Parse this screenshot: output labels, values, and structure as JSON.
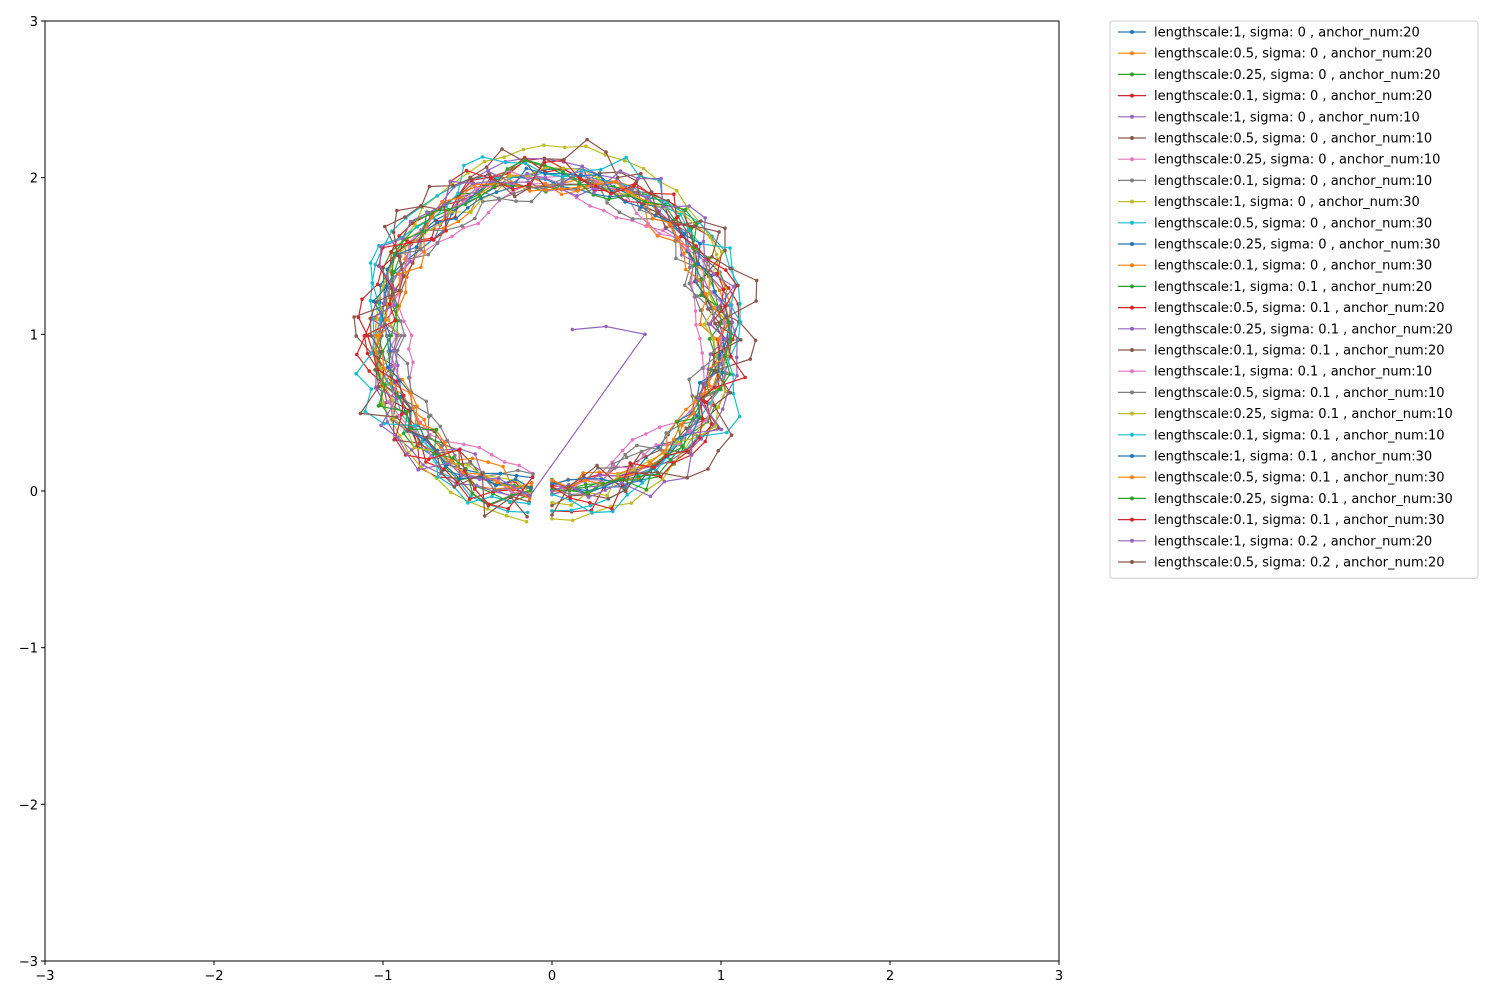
{
  "chart_data": {
    "type": "line",
    "xlim": [
      -3,
      3
    ],
    "ylim": [
      -3,
      3
    ],
    "xticks": [
      -3,
      -2,
      -1,
      0,
      1,
      2,
      3
    ],
    "yticks": [
      -3,
      -2,
      -1,
      0,
      1,
      2,
      3
    ],
    "xtick_labels": [
      "−3",
      "−2",
      "−1",
      "0",
      "1",
      "2",
      "3"
    ],
    "ytick_labels": [
      "−3",
      "−2",
      "−1",
      "0",
      "1",
      "2",
      "3"
    ],
    "grid": false,
    "legend_position": "outside-top-right",
    "center": [
      0,
      1
    ],
    "series": [
      {
        "name": "lengthscale:1, sigma: 0 , anchor_num:20",
        "color": "#1f77b4",
        "radius": 1.02,
        "wobble": 0.04,
        "freq": 5,
        "phase": 0.3,
        "points": 60,
        "noise": 0.02
      },
      {
        "name": "lengthscale:0.5, sigma: 0 , anchor_num:20",
        "color": "#ff7f0e",
        "radius": 1.0,
        "wobble": 0.05,
        "freq": 6,
        "phase": 1.1,
        "points": 60,
        "noise": 0.02
      },
      {
        "name": "lengthscale:0.25, sigma: 0 , anchor_num:20",
        "color": "#2ca02c",
        "radius": 1.03,
        "wobble": 0.06,
        "freq": 7,
        "phase": 2.0,
        "points": 60,
        "noise": 0.03
      },
      {
        "name": "lengthscale:0.1, sigma: 0 , anchor_num:20",
        "color": "#d62728",
        "radius": 1.05,
        "wobble": 0.08,
        "freq": 8,
        "phase": 0.7,
        "points": 60,
        "noise": 0.04
      },
      {
        "name": "lengthscale:1, sigma: 0 , anchor_num:10",
        "color": "#9467bd",
        "radius": 1.06,
        "wobble": 0.06,
        "freq": 3,
        "phase": 2.6,
        "points": 60,
        "noise": 0.02
      },
      {
        "name": "lengthscale:0.5, sigma: 0 , anchor_num:10",
        "color": "#8c564b",
        "radius": 1.0,
        "wobble": 0.07,
        "freq": 5,
        "phase": 3.3,
        "points": 60,
        "noise": 0.03
      },
      {
        "name": "lengthscale:0.25, sigma: 0 , anchor_num:10",
        "color": "#e377c2",
        "radius": 0.9,
        "wobble": 0.06,
        "freq": 6,
        "phase": 4.1,
        "points": 60,
        "noise": 0.02
      },
      {
        "name": "lengthscale:0.1, sigma: 0 , anchor_num:10",
        "color": "#7f7f7f",
        "radius": 0.95,
        "wobble": 0.08,
        "freq": 9,
        "phase": 1.5,
        "points": 60,
        "noise": 0.03
      },
      {
        "name": "lengthscale:1, sigma: 0 , anchor_num:30",
        "color": "#bcbd22",
        "radius": 1.12,
        "wobble": 0.08,
        "freq": 2,
        "phase": 5.0,
        "points": 60,
        "noise": 0.02
      },
      {
        "name": "lengthscale:0.5, sigma: 0 , anchor_num:30",
        "color": "#17becf",
        "radius": 1.08,
        "wobble": 0.07,
        "freq": 3,
        "phase": 0.4,
        "points": 60,
        "noise": 0.02
      },
      {
        "name": "lengthscale:0.25, sigma: 0 , anchor_num:30",
        "color": "#1f77b4",
        "radius": 0.98,
        "wobble": 0.05,
        "freq": 6,
        "phase": 2.8,
        "points": 60,
        "noise": 0.02
      },
      {
        "name": "lengthscale:0.1, sigma: 0 , anchor_num:30",
        "color": "#ff7f0e",
        "radius": 0.97,
        "wobble": 0.07,
        "freq": 9,
        "phase": 3.8,
        "points": 60,
        "noise": 0.03
      },
      {
        "name": "lengthscale:1, sigma: 0.1 , anchor_num:20",
        "color": "#2ca02c",
        "radius": 1.01,
        "wobble": 0.05,
        "freq": 4,
        "phase": 4.6,
        "points": 60,
        "noise": 0.05
      },
      {
        "name": "lengthscale:0.5, sigma: 0.1 , anchor_num:20",
        "color": "#d62728",
        "radius": 1.04,
        "wobble": 0.06,
        "freq": 5,
        "phase": 5.5,
        "points": 60,
        "noise": 0.06
      },
      {
        "name": "lengthscale:0.25, sigma: 0.1 , anchor_num:20",
        "color": "#9467bd",
        "radius": 0.99,
        "wobble": 0.06,
        "freq": 7,
        "phase": 0.9,
        "points": 60,
        "noise": 0.06
      },
      {
        "name": "lengthscale:0.1, sigma: 0.1 , anchor_num:20",
        "color": "#8c564b",
        "radius": 1.06,
        "wobble": 0.09,
        "freq": 10,
        "phase": 1.9,
        "points": 60,
        "noise": 0.08
      },
      {
        "name": "lengthscale:1, sigma: 0.1 , anchor_num:10",
        "color": "#e377c2",
        "radius": 1.0,
        "wobble": 0.05,
        "freq": 3,
        "phase": 2.2,
        "points": 60,
        "noise": 0.05
      },
      {
        "name": "lengthscale:0.5, sigma: 0.1 , anchor_num:10",
        "color": "#7f7f7f",
        "radius": 0.96,
        "wobble": 0.06,
        "freq": 4,
        "phase": 3.0,
        "points": 60,
        "noise": 0.05
      },
      {
        "name": "lengthscale:0.25, sigma: 0.1 , anchor_num:10",
        "color": "#bcbd22",
        "radius": 1.02,
        "wobble": 0.07,
        "freq": 6,
        "phase": 4.4,
        "points": 60,
        "noise": 0.06
      },
      {
        "name": "lengthscale:0.1, sigma: 0.1 , anchor_num:10",
        "color": "#17becf",
        "radius": 1.1,
        "wobble": 0.08,
        "freq": 8,
        "phase": 5.2,
        "points": 60,
        "noise": 0.06
      },
      {
        "name": "lengthscale:1, sigma: 0.1 , anchor_num:30",
        "color": "#1f77b4",
        "radius": 1.0,
        "wobble": 0.04,
        "freq": 5,
        "phase": 0.1,
        "points": 60,
        "noise": 0.05
      },
      {
        "name": "lengthscale:0.5, sigma: 0.1 , anchor_num:30",
        "color": "#ff7f0e",
        "radius": 0.98,
        "wobble": 0.05,
        "freq": 6,
        "phase": 1.3,
        "points": 60,
        "noise": 0.05
      },
      {
        "name": "lengthscale:0.25, sigma: 0.1 , anchor_num:30",
        "color": "#2ca02c",
        "radius": 1.03,
        "wobble": 0.06,
        "freq": 7,
        "phase": 2.4,
        "points": 60,
        "noise": 0.06
      },
      {
        "name": "lengthscale:0.1, sigma: 0.1 , anchor_num:30",
        "color": "#d62728",
        "radius": 1.04,
        "wobble": 0.09,
        "freq": 11,
        "phase": 3.6,
        "points": 60,
        "noise": 0.07
      },
      {
        "name": "lengthscale:1, sigma: 0.2 , anchor_num:20",
        "color": "#9467bd",
        "radius": 1.05,
        "wobble": 0.07,
        "freq": 4,
        "phase": 4.9,
        "points": 60,
        "noise": 0.1,
        "tail": [
          [
            0.55,
            1.0
          ],
          [
            0.32,
            1.05
          ],
          [
            0.12,
            1.03
          ]
        ]
      },
      {
        "name": "lengthscale:0.5, sigma: 0.2 , anchor_num:20",
        "color": "#8c564b",
        "radius": 1.07,
        "wobble": 0.1,
        "freq": 6,
        "phase": 5.8,
        "points": 60,
        "noise": 0.12
      }
    ]
  }
}
